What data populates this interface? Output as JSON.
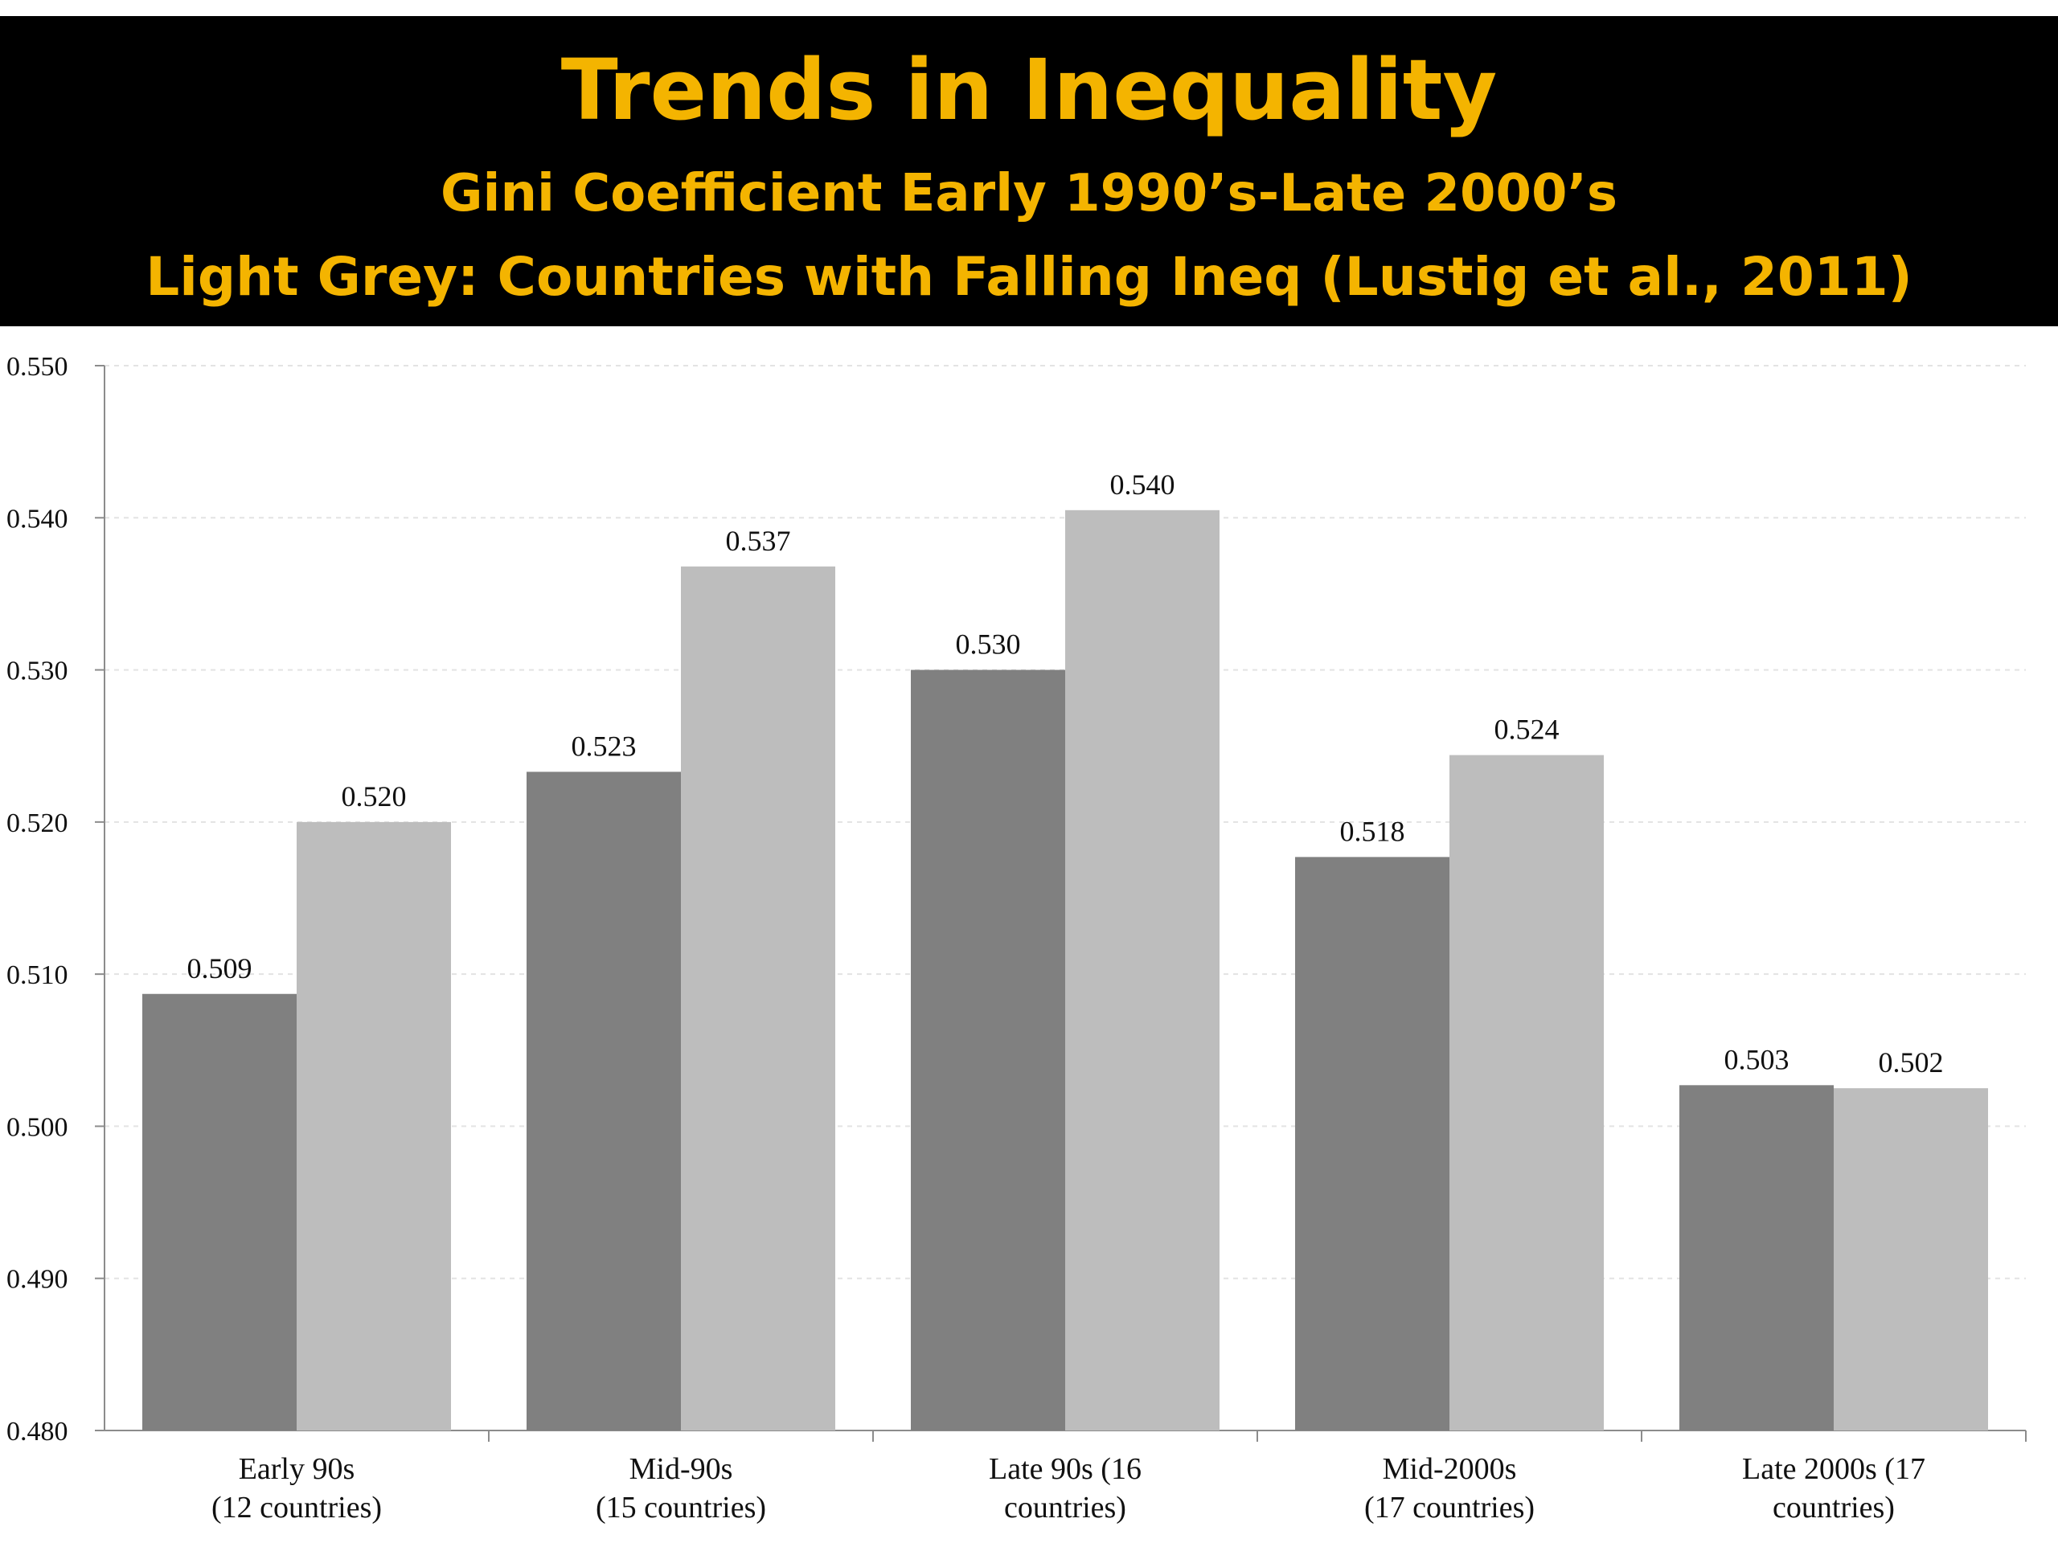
{
  "title": "Trends in Inequality",
  "subtitle_line1": "Gini Coefficient Early 1990’s-Late 2000’s",
  "subtitle_line2": "Light Grey: Countries with Falling Ineq (Lustig et al., 2011)",
  "colors": {
    "title_background": "#000000",
    "title_text": "#f4b400",
    "series_dark": "#808080",
    "series_light": "#bdbdbd",
    "axis": "#8c8c8c",
    "grid": "#e3e3e3"
  },
  "chart_data": {
    "type": "bar",
    "categories": [
      [
        "Early 90s",
        "(12 countries)"
      ],
      [
        "Mid-90s",
        "(15 countries)"
      ],
      [
        "Late 90s (16",
        "countries)"
      ],
      [
        "Mid-2000s",
        "(17 countries)"
      ],
      [
        "Late 2000s (17",
        "countries)"
      ]
    ],
    "series": [
      {
        "values": [
          0.509,
          0.523,
          0.53,
          0.518,
          0.503
        ],
        "color": "#808080"
      },
      {
        "values": [
          0.52,
          0.537,
          0.54,
          0.524,
          0.502
        ],
        "color": "#bdbdbd"
      }
    ],
    "plotted_values": [
      [
        0.5087,
        0.5233,
        0.53,
        0.5177,
        0.5027
      ],
      [
        0.52,
        0.5368,
        0.5405,
        0.5244,
        0.5025
      ]
    ],
    "data_labels": [
      [
        "0.509",
        "0.523",
        "0.530",
        "0.518",
        "0.503"
      ],
      [
        "0.520",
        "0.537",
        "0.540",
        "0.524",
        "0.502"
      ]
    ],
    "yticks": [
      "0.480",
      "0.490",
      "0.500",
      "0.510",
      "0.520",
      "0.530",
      "0.540",
      "0.550"
    ],
    "ylim": [
      0.48,
      0.55
    ],
    "grid": true,
    "xlabel": "",
    "ylabel": ""
  }
}
